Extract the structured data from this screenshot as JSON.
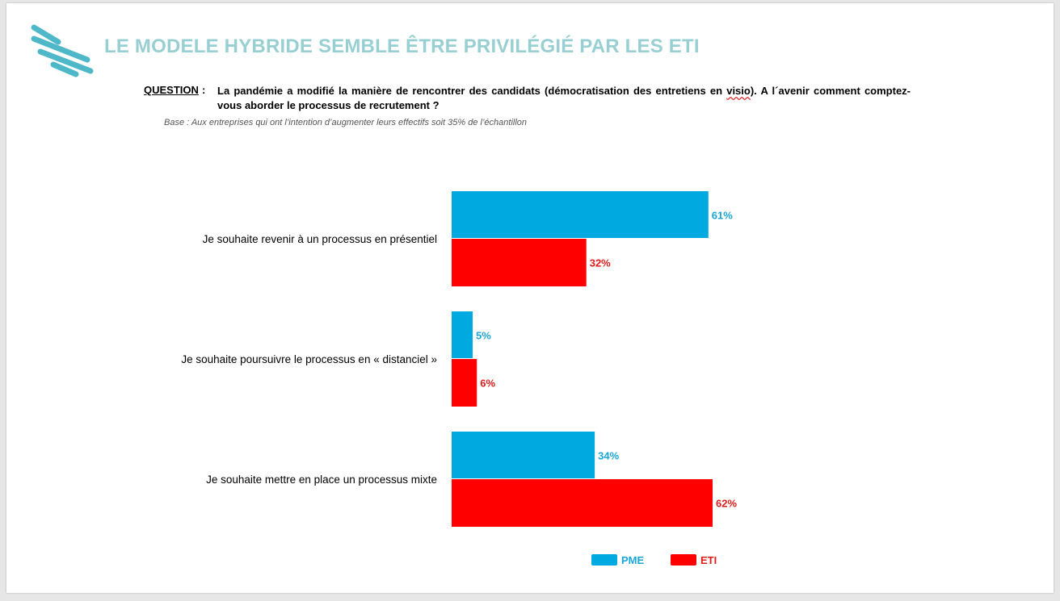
{
  "slide": {
    "title": "LE MODELE HYBRIDE SEMBLE ÊTRE PRIVILÉGIÉ PAR LES ETI",
    "question_label": "QUESTION",
    "question_colon": ":",
    "question_text_before": "La pandémie a modifié la manière de rencontrer des candidats (démocratisation des entretiens en ",
    "question_text_squiggle": "visio",
    "question_text_after": "). A l´avenir comment comptez-vous aborder le processus de recrutement ?",
    "base_note": "Base : Aux entreprises qui ont l’intention d’augmenter leurs effectifs soit 35% de l’échantillon",
    "logo_icon": "stripes-logo-icon"
  },
  "colors": {
    "title": "#98cfd2",
    "pme": "#00a9e0",
    "eti": "#ff0000",
    "pme_label": "#1aa6d6",
    "eti_label": "#e01b1b",
    "logo": "#4fb8c8"
  },
  "chart_data": {
    "type": "bar",
    "orientation": "horizontal",
    "categories": [
      "Je souhaite revenir à un processus en présentiel",
      "Je souhaite poursuivre le processus en « distanciel »",
      "Je souhaite mettre en place un processus mixte"
    ],
    "series": [
      {
        "name": "PME",
        "values": [
          61,
          5,
          34
        ],
        "labels": [
          "61%",
          "5%",
          "34%"
        ]
      },
      {
        "name": "ETI",
        "values": [
          32,
          6,
          62
        ],
        "labels": [
          "32%",
          "6%",
          "62%"
        ]
      }
    ],
    "unit": "%",
    "xlim": [
      0,
      100
    ],
    "grid": false,
    "legend_position": "bottom"
  }
}
